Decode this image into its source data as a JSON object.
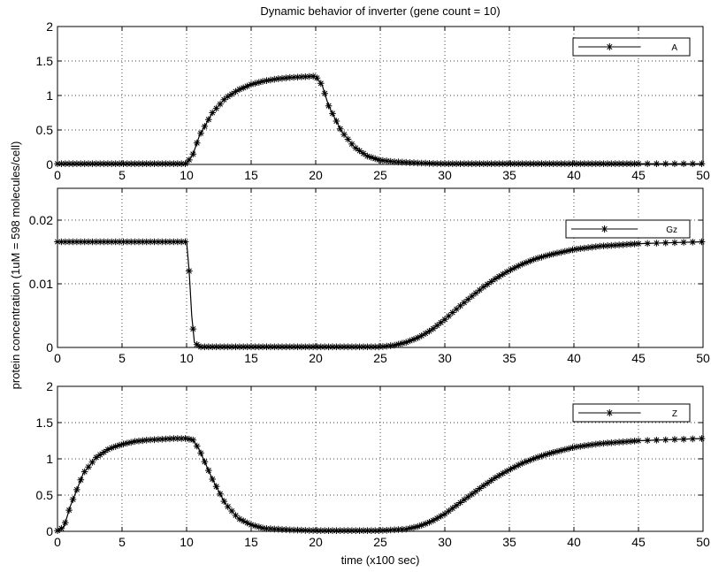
{
  "chart_data": [
    {
      "type": "line",
      "title": "Dynamic behavior of inverter (gene count = 10)",
      "xlabel": "",
      "ylabel": "",
      "xlim": [
        0,
        50
      ],
      "ylim": [
        0,
        2
      ],
      "xticks": [
        0,
        5,
        10,
        15,
        20,
        25,
        30,
        35,
        40,
        45,
        50
      ],
      "xtick_labels": [
        "0",
        "5",
        "10",
        "15",
        "20",
        "25",
        "30",
        "35",
        "40",
        "45",
        "50"
      ],
      "yticks": [
        0,
        0.5,
        1,
        1.5,
        2
      ],
      "ytick_labels": [
        "0",
        "0.5",
        "1",
        "1.5",
        "2"
      ],
      "grid": true,
      "legend": "top-right",
      "series": [
        {
          "name": "A",
          "marker": "*",
          "x": [
            0,
            10,
            10.5,
            11,
            12,
            13,
            14,
            15,
            16,
            17,
            18,
            19,
            20,
            20.5,
            21,
            22,
            23,
            24,
            25,
            26,
            28,
            30,
            35,
            40,
            45,
            50
          ],
          "y": [
            0.01,
            0.01,
            0.15,
            0.42,
            0.75,
            0.96,
            1.08,
            1.16,
            1.21,
            1.24,
            1.26,
            1.27,
            1.28,
            1.15,
            0.85,
            0.48,
            0.25,
            0.12,
            0.06,
            0.04,
            0.02,
            0.01,
            0.01,
            0.01,
            0.01,
            0.01
          ]
        }
      ]
    },
    {
      "type": "line",
      "xlabel": "",
      "ylabel": "",
      "xlim": [
        0,
        50
      ],
      "ylim": [
        0,
        0.025
      ],
      "xticks": [
        0,
        5,
        10,
        15,
        20,
        25,
        30,
        35,
        40,
        45,
        50
      ],
      "xtick_labels": [
        "0",
        "5",
        "10",
        "15",
        "20",
        "25",
        "30",
        "35",
        "40",
        "45",
        "50"
      ],
      "yticks": [
        0,
        0.01,
        0.02
      ],
      "ytick_labels": [
        "0",
        "0.01",
        "0.02"
      ],
      "grid": true,
      "legend": "top-right",
      "series": [
        {
          "name": "Gz",
          "marker": "*",
          "x": [
            0,
            10,
            10.2,
            10.4,
            10.6,
            11,
            15,
            20,
            25,
            26,
            27,
            28,
            29,
            30,
            31,
            32,
            33,
            34,
            35,
            36,
            37,
            38,
            40,
            42,
            45,
            50
          ],
          "y": [
            0.0166,
            0.0166,
            0.012,
            0.005,
            0.0008,
            0.0001,
            0.0001,
            0.0001,
            0.0001,
            0.0003,
            0.0008,
            0.0016,
            0.0028,
            0.0044,
            0.0062,
            0.0079,
            0.0095,
            0.0109,
            0.0121,
            0.0131,
            0.0139,
            0.0145,
            0.0154,
            0.0159,
            0.0163,
            0.0166
          ]
        }
      ]
    },
    {
      "type": "line",
      "xlabel": "time (x100 sec)",
      "ylabel": "",
      "xlim": [
        0,
        50
      ],
      "ylim": [
        0,
        2
      ],
      "xticks": [
        0,
        5,
        10,
        15,
        20,
        25,
        30,
        35,
        40,
        45,
        50
      ],
      "xtick_labels": [
        "0",
        "5",
        "10",
        "15",
        "20",
        "25",
        "30",
        "35",
        "40",
        "45",
        "50"
      ],
      "yticks": [
        0,
        0.5,
        1,
        1.5,
        2
      ],
      "ytick_labels": [
        "0",
        "0.5",
        "1",
        "1.5",
        "2"
      ],
      "grid": true,
      "legend": "top-right",
      "series": [
        {
          "name": "Z",
          "marker": "*",
          "x": [
            0,
            0.5,
            1,
            2,
            3,
            4,
            5,
            6,
            7,
            8,
            9,
            10,
            10.5,
            11,
            12,
            13,
            14,
            15,
            16,
            18,
            20,
            25,
            27,
            28,
            29,
            30,
            31,
            32,
            33,
            34,
            35,
            36,
            37,
            38,
            40,
            42,
            45,
            50
          ],
          "y": [
            0.01,
            0.06,
            0.35,
            0.8,
            1.02,
            1.14,
            1.2,
            1.24,
            1.26,
            1.27,
            1.28,
            1.28,
            1.26,
            1.12,
            0.72,
            0.38,
            0.18,
            0.09,
            0.04,
            0.02,
            0.01,
            0.01,
            0.03,
            0.07,
            0.14,
            0.24,
            0.37,
            0.5,
            0.63,
            0.75,
            0.85,
            0.94,
            1.01,
            1.07,
            1.16,
            1.21,
            1.25,
            1.28
          ]
        }
      ]
    }
  ],
  "shared_ylabel": "protein concentration (1uM = 598 molecules/cell)"
}
